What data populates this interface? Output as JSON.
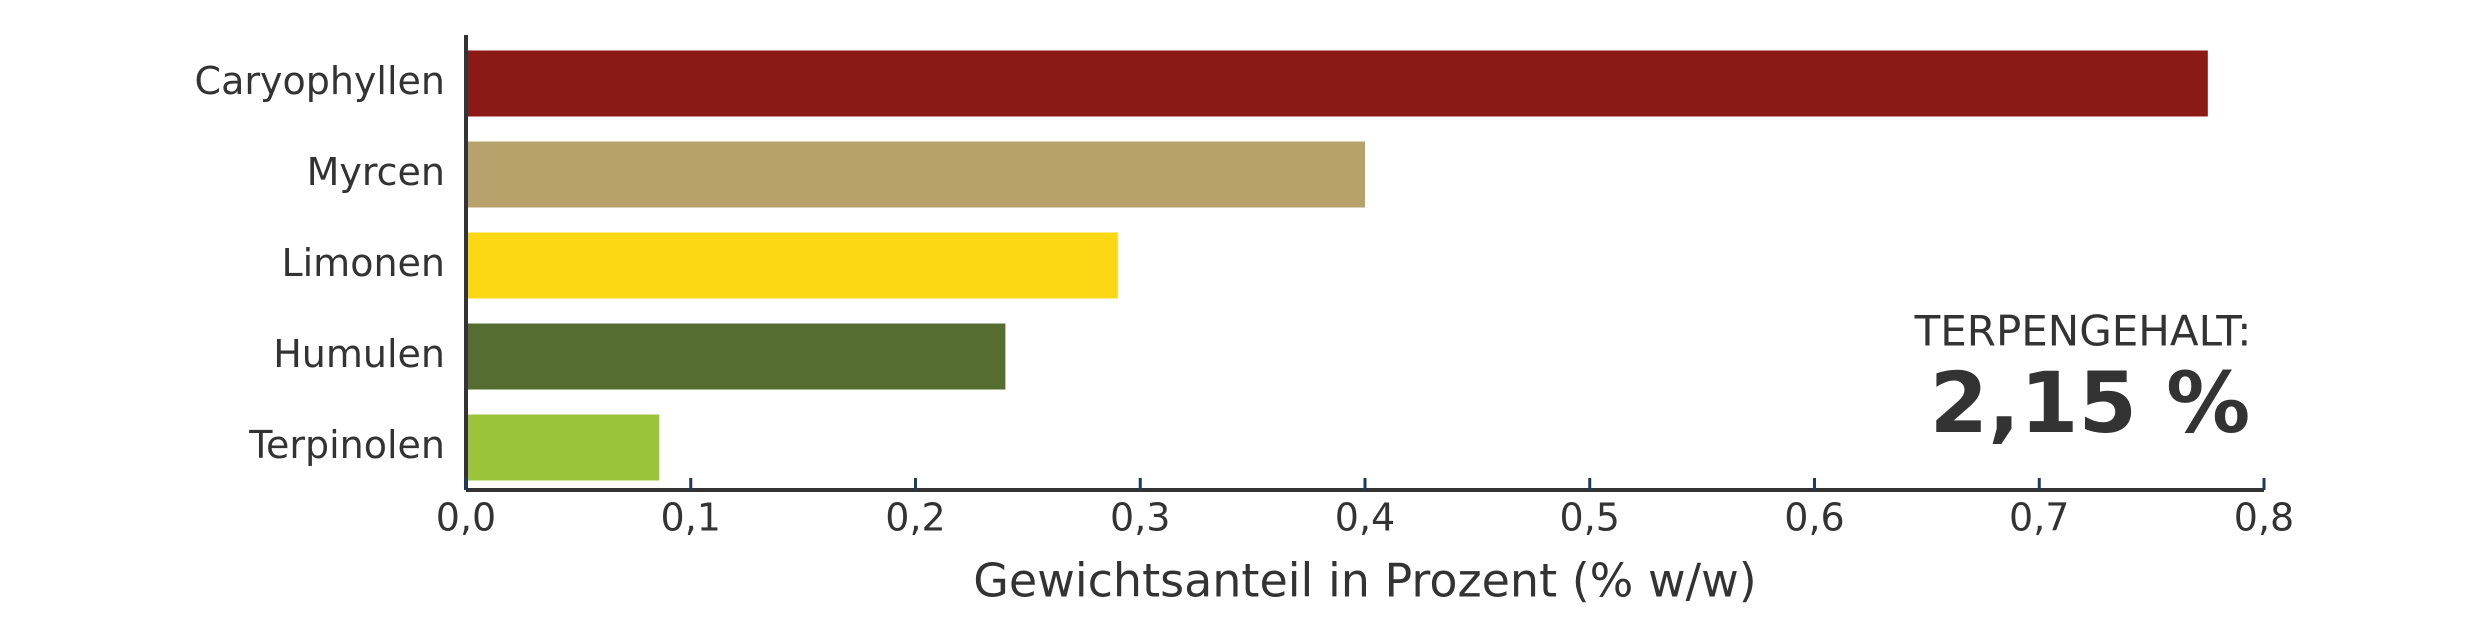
{
  "chart_data": {
    "type": "barh",
    "categories": [
      "Caryophyllen",
      "Myrcen",
      "Limonen",
      "Humulen",
      "Terpinolen"
    ],
    "values": [
      0.775,
      0.4,
      0.29,
      0.24,
      0.086
    ],
    "colors": [
      "#8b1915",
      "#b7a26b",
      "#fbd714",
      "#556d30",
      "#9bc43a"
    ],
    "xlabel": "Gewichtsanteil in Prozent (% w/w)",
    "xlim": [
      0,
      0.8
    ],
    "xticks": [
      {
        "value": 0,
        "label": "0,0"
      },
      {
        "value": 0.1,
        "label": "0,1"
      },
      {
        "value": 0.2,
        "label": "0,2"
      },
      {
        "value": 0.3,
        "label": "0,3"
      },
      {
        "value": 0.4,
        "label": "0,4"
      },
      {
        "value": 0.5,
        "label": "0,5"
      },
      {
        "value": 0.6,
        "label": "0,6"
      },
      {
        "value": 0.7,
        "label": "0,7"
      },
      {
        "value": 0.8,
        "label": "0,8"
      }
    ],
    "annotations": [
      "TERPENGEHALT:",
      "2,15 %"
    ]
  }
}
